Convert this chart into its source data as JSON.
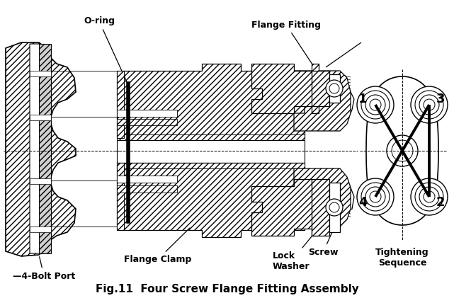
{
  "title": "Fig.11  Four Screw Flange Fitting Assembly",
  "title_fontsize": 11,
  "background_color": "#ffffff",
  "labels": {
    "o_ring": "O-ring",
    "flange_fitting": "Flange Fitting",
    "flange_clamp": "Flange Clamp",
    "lock_washer": "Lock\nWasher",
    "screw": "Screw",
    "four_bolt_port": "—4-Bolt Port",
    "tightening_sequence": "Tightening\nSequence"
  },
  "sequence_numbers": [
    "1",
    "2",
    "3",
    "4"
  ],
  "fig_width": 6.41,
  "fig_height": 4.21,
  "dpi": 100
}
